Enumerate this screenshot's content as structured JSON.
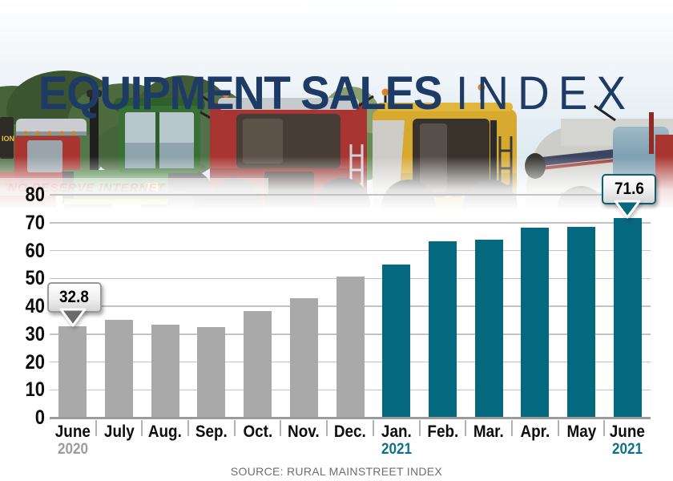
{
  "header": {
    "title_bold": "EQUIPMENT SALES",
    "title_light": "INDEX",
    "title_color": "#1e3b66",
    "photo": {
      "watermark": "NO RESERVE INTERNET",
      "sign": "ION"
    }
  },
  "footer": {
    "source": "SOURCE: RURAL MAINSTREET INDEX"
  },
  "chart_data": {
    "type": "bar",
    "title": "Equipment Sales Index",
    "categories": [
      {
        "month": "June",
        "year": "2020",
        "year_style": "gray"
      },
      {
        "month": "July"
      },
      {
        "month": "Aug."
      },
      {
        "month": "Sep."
      },
      {
        "month": "Oct."
      },
      {
        "month": "Nov."
      },
      {
        "month": "Dec."
      },
      {
        "month": "Jan.",
        "year": "2021",
        "year_style": "teal"
      },
      {
        "month": "Feb."
      },
      {
        "month": "Mar."
      },
      {
        "month": "Apr."
      },
      {
        "month": "May"
      },
      {
        "month": "June",
        "year": "2021",
        "year_style": "teal"
      }
    ],
    "values": [
      32.8,
      35.0,
      33.3,
      32.5,
      38.4,
      43.0,
      50.6,
      55.0,
      63.3,
      63.9,
      68.2,
      68.5,
      71.6
    ],
    "highlight_start_index": 7,
    "ylim": [
      0,
      80
    ],
    "ytick_step": 10,
    "grid": true,
    "legend": "none",
    "annotations": [
      {
        "index": 0,
        "label": "32.8",
        "style": "gray"
      },
      {
        "index": 12,
        "label": "71.6",
        "style": "teal"
      }
    ],
    "colors": {
      "gray_bar": "#a9a9a9",
      "teal_bar": "#04687f",
      "gridline": "#c3c3c3",
      "axis": "#9b9b9b",
      "year_gray": "#9c9c9c",
      "year_teal": "#0f7187",
      "callout_gray_border": "#9a9a9a",
      "callout_gray_tri": "#6b6b6b",
      "callout_teal_border": "#0c5f72",
      "callout_teal_tri": "#04687f"
    }
  }
}
